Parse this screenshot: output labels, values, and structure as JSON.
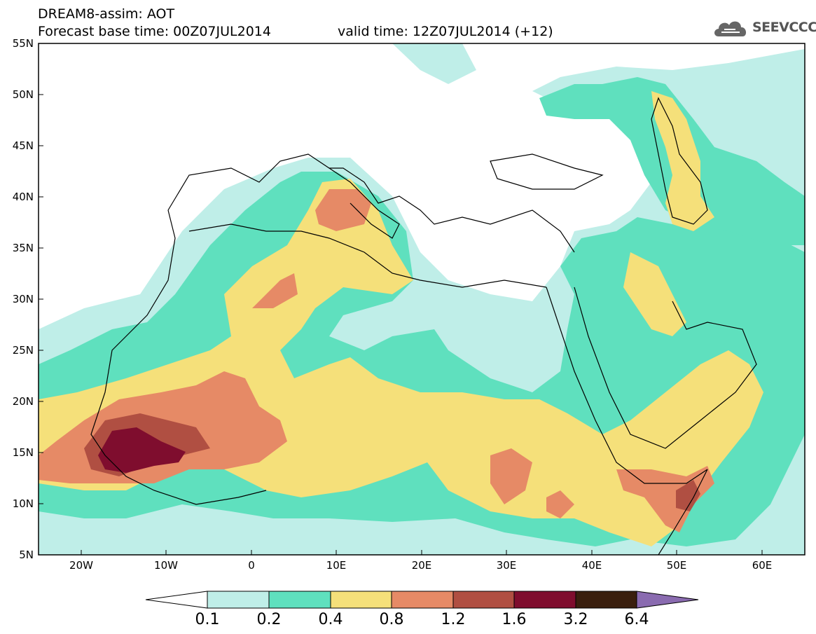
{
  "header": {
    "model_line": "DREAM8-assim: AOT",
    "base_time": "Forecast base time: 00Z07JUL2014",
    "valid_time": "valid time: 12Z07JUL2014 (+12)"
  },
  "logo": {
    "text": "SEEVCCC",
    "icon": "cloud-icon"
  },
  "map": {
    "lat_ticks": [
      "55N",
      "50N",
      "45N",
      "40N",
      "35N",
      "30N",
      "25N",
      "20N",
      "15N",
      "10N",
      "5N"
    ],
    "lon_ticks": [
      "20W",
      "10W",
      "0",
      "10E",
      "20E",
      "30E",
      "40E",
      "50E",
      "60E"
    ],
    "lat_range": [
      5,
      55
    ],
    "lon_range": [
      -25,
      65
    ],
    "field": "AOT",
    "colors": {
      "0.1": "#bfeee8",
      "0.2": "#5fe0be",
      "0.4": "#f5e07a",
      "0.8": "#e68a66",
      "1.2": "#b04f42",
      "1.6": "#7f0d2e",
      "3.2": "#3a1f0e",
      "6.4": "#8a6bb0"
    }
  },
  "colorbar": {
    "labels": [
      "0.1",
      "0.2",
      "0.4",
      "0.8",
      "1.2",
      "1.6",
      "3.2",
      "6.4"
    ],
    "colors": [
      "#ffffff",
      "#bfeee8",
      "#5fe0be",
      "#f5e07a",
      "#e68a66",
      "#b04f42",
      "#7f0d2e",
      "#3a1f0e",
      "#8a6bb0"
    ]
  }
}
